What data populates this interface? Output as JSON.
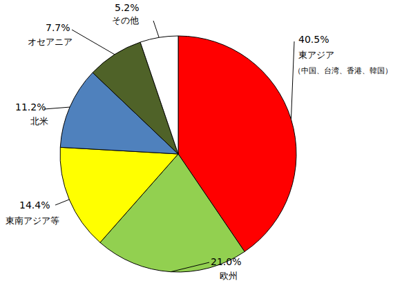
{
  "chart_data": {
    "type": "pie",
    "categories": [
      "東アジア\n（中国、台湾、香港、韓国）",
      "欧州",
      "東南アジア等",
      "北米",
      "オセアニア",
      "その他"
    ],
    "values": [
      40.5,
      21.0,
      14.4,
      11.2,
      7.7,
      5.2
    ],
    "value_labels": [
      "40.5%",
      "21.0%",
      "14.4%",
      "11.2%",
      "7.7%",
      "5.2%"
    ],
    "colors": [
      "#ff0000",
      "#92d050",
      "#ffff00",
      "#4f81bd",
      "#4f6228",
      "#ffffff"
    ],
    "data_labels": true
  }
}
